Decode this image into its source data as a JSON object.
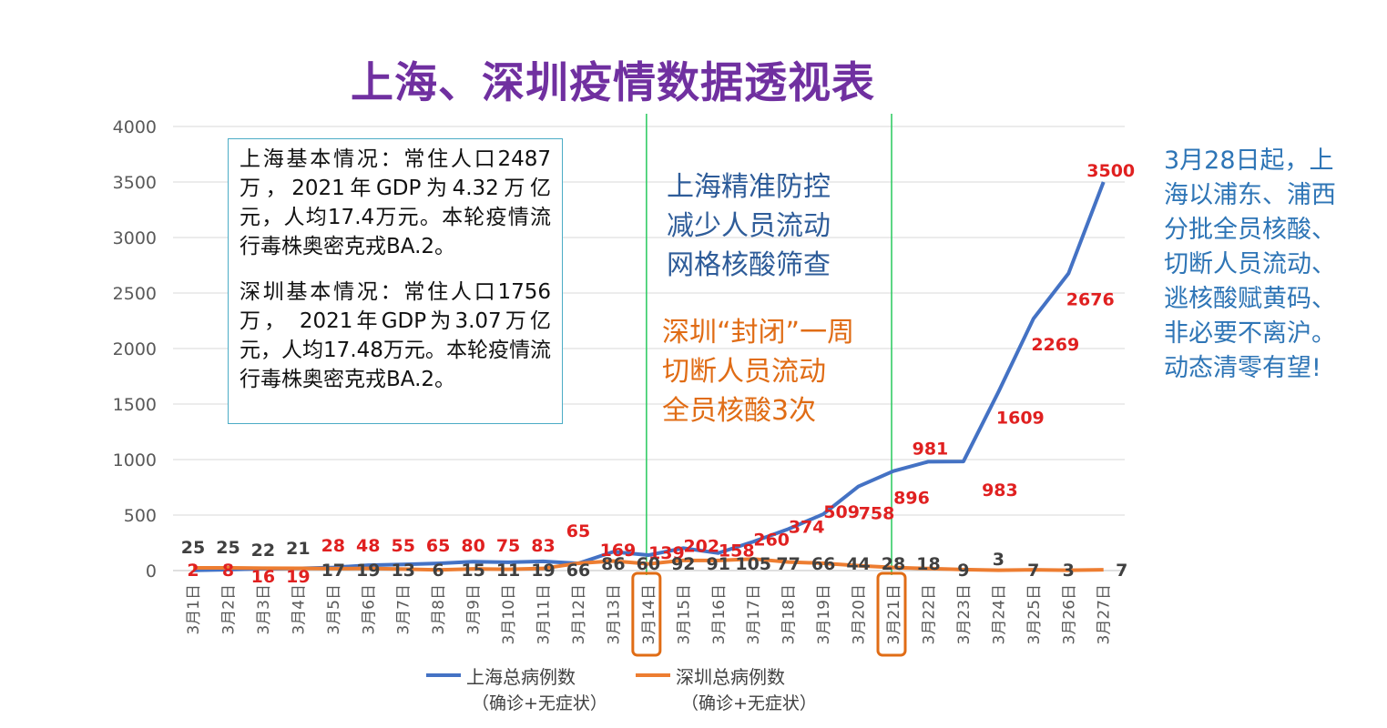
{
  "title": "上海、深圳疫情数据透视表",
  "info_box": {
    "shanghai": "上海基本情况：常住人口2487万，2021年GDP为4.32万亿元，人均17.4万元。本轮疫情流行毒株奥密克戎BA.2。",
    "shenzhen": "深圳基本情况：常住人口1756万， 2021年GDP为3.07万亿元，人均17.48万元。本轮疫情流行毒株奥密克戎BA.2。"
  },
  "annotations": {
    "shanghai_measures": "上海精准防控\n减少人员流动\n网格核酸筛查",
    "shenzhen_measures": "深圳“封闭”一周\n切断人员流动\n全员核酸3次",
    "right_note": "3月28日起，上\n海以浦东、浦西\n分批全员核酸、\n切断人员流动、\n逃核酸赋黄码、\n非必要不离沪。\n动态清零有望!"
  },
  "colors": {
    "shanghai": "#4472c4",
    "shenzhen": "#ed7d31",
    "label_red": "#e02020",
    "label_dark": "#404040",
    "vline": "#33cc66",
    "highlight_box": "#e06c15",
    "title": "#7030a0"
  },
  "chart_data": {
    "type": "line",
    "categories": [
      "3月1日",
      "3月2日",
      "3月3日",
      "3月4日",
      "3月5日",
      "3月6日",
      "3月7日",
      "3月8日",
      "3月9日",
      "3月10日",
      "3月11日",
      "3月12日",
      "3月13日",
      "3月14日",
      "3月15日",
      "3月16日",
      "3月17日",
      "3月18日",
      "3月19日",
      "3月20日",
      "3月21日",
      "3月22日",
      "3月23日",
      "3月24日",
      "3月25日",
      "3月26日",
      "3月27日"
    ],
    "ylim": [
      0,
      4000
    ],
    "yticks": [
      0,
      500,
      1000,
      1500,
      2000,
      2500,
      3000,
      3500,
      4000
    ],
    "grid": true,
    "legend_position": "bottom",
    "highlighted_categories": [
      "3月14日",
      "3月21日"
    ],
    "series": [
      {
        "name": "上海总病例数",
        "name_sub": "（确诊+无症状）",
        "values": [
          2,
          8,
          16,
          19,
          28,
          48,
          55,
          65,
          80,
          75,
          83,
          65,
          169,
          139,
          202,
          158,
          260,
          374,
          509,
          758,
          896,
          981,
          983,
          1609,
          2269,
          2676,
          3500
        ],
        "labels": [
          "2",
          "8",
          "16",
          "19",
          "28",
          "48",
          "55",
          "65",
          "80",
          "75",
          "83",
          "65",
          "169",
          "139",
          "202",
          "158",
          "260",
          "374",
          "509",
          "758",
          "896",
          "981",
          "983",
          "1609",
          "2269",
          "2676",
          "3500"
        ]
      },
      {
        "name": "深圳总病例数",
        "name_sub": "（确诊+无症状）",
        "values": [
          25,
          25,
          22,
          21,
          17,
          19,
          13,
          6,
          15,
          11,
          19,
          66,
          86,
          60,
          92,
          91,
          105,
          77,
          66,
          44,
          28,
          18,
          9,
          3,
          7,
          3,
          7
        ],
        "labels": [
          "25",
          "25",
          "22",
          "21",
          "17",
          "19",
          "13",
          "6",
          "15",
          "11",
          "19",
          "66",
          "86",
          "60",
          "92",
          "91",
          "105",
          "77",
          "66",
          "44",
          "28",
          "18",
          "9",
          "3",
          "7",
          "3",
          "7"
        ]
      }
    ]
  }
}
